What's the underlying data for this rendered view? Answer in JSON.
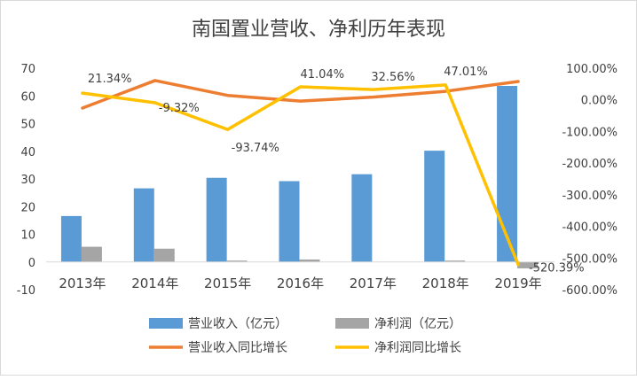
{
  "chart_data": {
    "type": "bar",
    "title": "南国置业营收、净利历年表现",
    "categories": [
      "2013年",
      "2014年",
      "2015年",
      "2016年",
      "2017年",
      "2018年",
      "2019年"
    ],
    "bar_series": [
      {
        "name": "营业收入（亿元）",
        "color": "#5B9BD5",
        "values": [
          16.6,
          26.6,
          30.4,
          29.2,
          31.7,
          40.2,
          63.6
        ]
      },
      {
        "name": "净利润（亿元）",
        "color": "#A5A5A5",
        "values": [
          5.5,
          4.8,
          0.5,
          0.9,
          0.1,
          0.5,
          -2.3
        ]
      }
    ],
    "line_series": [
      {
        "name": "营业收入同比增长",
        "color": "#ED7D31",
        "values": [
          -26.0,
          61.0,
          14.0,
          -4.0,
          8.6,
          27.0,
          58.0
        ]
      },
      {
        "name": "净利润同比增长",
        "color": "#FFC000",
        "values": [
          21.34,
          -9.32,
          -93.74,
          41.04,
          32.56,
          47.01,
          -520.39
        ]
      }
    ],
    "data_labels": [
      "21.34%",
      "-9.32%",
      "-93.74%",
      "41.04%",
      "32.56%",
      "47.01%",
      "-520.39%"
    ],
    "left_axis": {
      "min": -10,
      "max": 70,
      "step": 10,
      "ticks": [
        "70",
        "60",
        "50",
        "40",
        "30",
        "20",
        "10",
        "0",
        "-10"
      ]
    },
    "right_axis": {
      "min": -600,
      "max": 100,
      "step": 100,
      "ticks": [
        "100.00%",
        "0.00%",
        "-100.00%",
        "-200.00%",
        "-300.00%",
        "-400.00%",
        "-500.00%",
        "-600.00%"
      ]
    },
    "grid": false,
    "legend_position": "bottom"
  }
}
